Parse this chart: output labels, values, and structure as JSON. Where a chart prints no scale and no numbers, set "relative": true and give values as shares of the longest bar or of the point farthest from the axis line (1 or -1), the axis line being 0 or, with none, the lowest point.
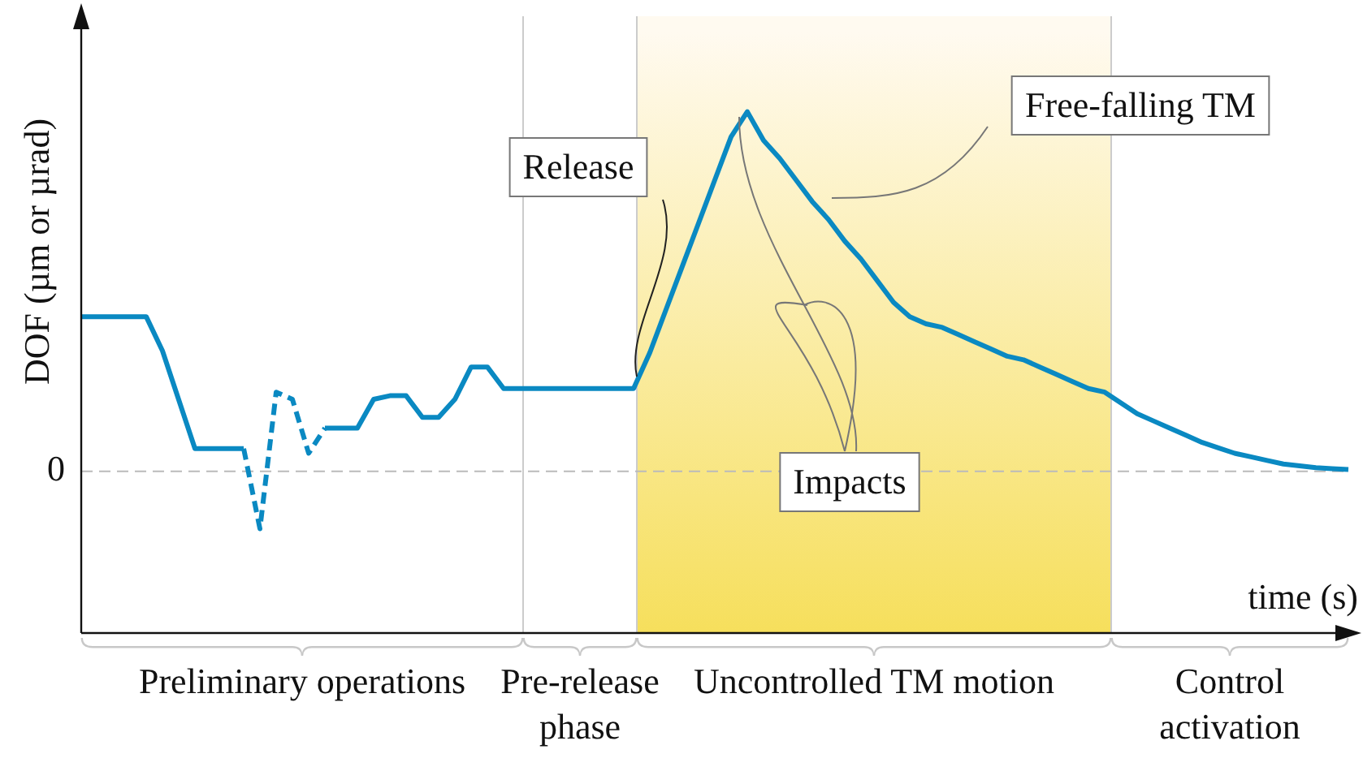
{
  "chart_data": {
    "type": "line",
    "relative": true,
    "xlabel": "time (s)",
    "ylabel": "DOF (µm or µrad)",
    "categories": [
      null,
      null,
      null,
      null,
      null,
      null,
      null,
      null,
      null,
      null,
      null,
      null,
      null,
      null,
      null,
      null,
      null,
      null,
      null,
      null,
      null,
      null,
      null,
      null,
      null,
      null,
      null,
      null,
      null,
      null,
      null,
      null,
      null,
      null,
      null,
      null,
      null,
      null,
      null,
      null,
      null,
      null,
      null,
      null,
      null,
      null,
      null,
      null,
      null,
      null,
      null,
      null,
      null,
      null,
      null,
      null,
      null,
      null,
      null,
      null,
      null,
      null,
      null,
      null,
      null,
      null,
      null,
      null,
      null,
      null,
      null,
      null,
      null,
      null,
      null,
      null,
      null,
      null,
      null
    ],
    "series": [
      {
        "color": "#0a89c2",
        "line_style": "solid",
        "values": [
          0.43,
          0.43,
          0.43,
          0.43,
          0.43,
          0.335,
          0.199,
          0.063,
          0.063,
          0.063,
          0.063,
          null,
          null,
          null,
          null,
          0.12,
          0.12,
          0.12,
          0.2,
          0.21,
          0.21,
          0.15,
          0.15,
          0.2,
          0.29,
          0.29,
          0.23,
          0.23,
          0.23,
          0.23,
          0.23,
          0.23,
          0.23,
          0.23,
          0.23,
          0.33,
          0.45,
          0.57,
          0.69,
          0.81,
          0.93,
          1.0,
          0.92,
          0.87,
          0.81,
          0.75,
          0.7,
          0.64,
          0.59,
          0.53,
          0.47,
          0.43,
          0.41,
          0.4,
          0.38,
          0.36,
          0.34,
          0.32,
          0.31,
          0.29,
          0.27,
          0.25,
          0.23,
          0.22,
          0.19,
          0.16,
          0.14,
          0.12,
          0.1,
          0.08,
          0.065,
          0.05,
          0.04,
          0.03,
          0.02,
          0.015,
          0.01,
          0.007,
          0.005
        ]
      },
      {
        "color": "#0a89c2",
        "line_style": "dashed",
        "values": [
          null,
          null,
          null,
          null,
          null,
          null,
          null,
          null,
          null,
          null,
          0.063,
          -0.16,
          0.22,
          0.2,
          0.05,
          0.12,
          null,
          null,
          null,
          null,
          null,
          null,
          null,
          null,
          null,
          null,
          null,
          null,
          null,
          null,
          null,
          null,
          null,
          null,
          null,
          null,
          null,
          null,
          null,
          null,
          null,
          null,
          null,
          null,
          null,
          null,
          null,
          null,
          null,
          null,
          null,
          null,
          null,
          null,
          null,
          null,
          null,
          null,
          null,
          null,
          null,
          null,
          null,
          null,
          null,
          null,
          null,
          null,
          null,
          null,
          null,
          null,
          null,
          null,
          null,
          null,
          null,
          null,
          null
        ]
      }
    ],
    "ref_lines": [
      {
        "axis": "y",
        "value": 0,
        "label": "0",
        "line_style": "dashed",
        "color": "#bbbbbb"
      }
    ],
    "annotations": [
      "Release",
      "Free-falling TM",
      "Impacts",
      "Preliminary operations",
      "Pre-release phase",
      "Uncontrolled TM motion",
      "Control activation"
    ],
    "marker": "none",
    "legend": false
  }
}
